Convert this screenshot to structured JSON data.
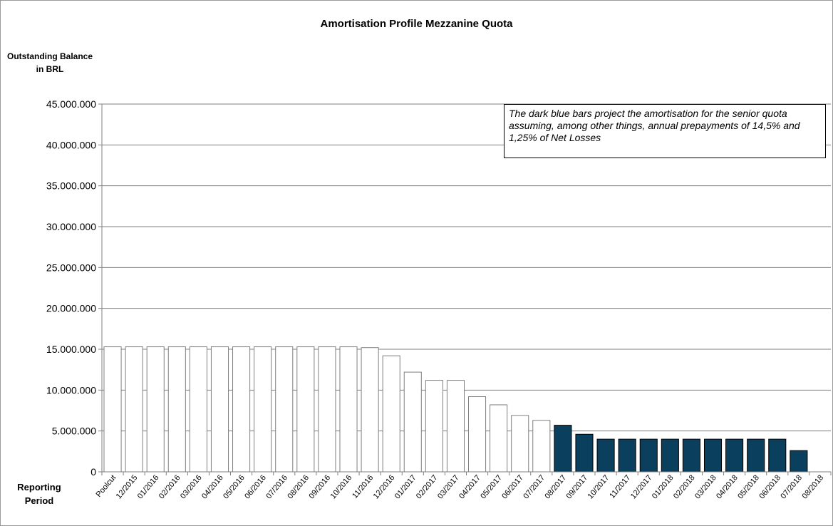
{
  "chart_data": {
    "type": "bar",
    "title": "Amortisation Profile Mezzanine Quota",
    "ylabel": "Outstanding Balance in BRL",
    "xlabel": "Reporting Period",
    "ylim": [
      0,
      45000000
    ],
    "yticks": [
      0,
      5000000,
      10000000,
      15000000,
      20000000,
      25000000,
      30000000,
      35000000,
      40000000,
      45000000
    ],
    "ytick_labels": [
      "0",
      "5.000.000",
      "10.000.000",
      "15.000.000",
      "20.000.000",
      "25.000.000",
      "30.000.000",
      "35.000.000",
      "40.000.000",
      "45.000.000"
    ],
    "grid": true,
    "categories": [
      "Poolcut",
      "12/2015",
      "01/2016",
      "02/2016",
      "03/2016",
      "04/2016",
      "05/2016",
      "06/2016",
      "07/2016",
      "08/2016",
      "09/2016",
      "10/2016",
      "11/2016",
      "12/2016",
      "01/2017",
      "02/2017",
      "03/2017",
      "04/2017",
      "05/2017",
      "06/2017",
      "07/2017",
      "08/2017",
      "09/2017",
      "10/2017",
      "11/2017",
      "12/2017",
      "01/2018",
      "02/2018",
      "03/2018",
      "04/2018",
      "05/2018",
      "06/2018",
      "07/2018",
      "08/2018"
    ],
    "values": [
      15300000,
      15300000,
      15300000,
      15300000,
      15300000,
      15300000,
      15300000,
      15300000,
      15300000,
      15300000,
      15300000,
      15300000,
      15200000,
      14200000,
      12200000,
      11200000,
      11200000,
      9200000,
      8200000,
      6900000,
      6300000,
      5700000,
      4600000,
      4000000,
      4000000,
      4000000,
      4000000,
      4000000,
      4000000,
      4000000,
      4000000,
      4000000,
      2600000,
      null
    ],
    "bar_styles": [
      "actual",
      "actual",
      "actual",
      "actual",
      "actual",
      "actual",
      "actual",
      "actual",
      "actual",
      "actual",
      "actual",
      "actual",
      "actual",
      "actual",
      "actual",
      "actual",
      "actual",
      "actual",
      "actual",
      "actual",
      "actual",
      "projected",
      "projected",
      "projected",
      "projected",
      "projected",
      "projected",
      "projected",
      "projected",
      "projected",
      "projected",
      "projected",
      "projected",
      "projected"
    ],
    "colors": {
      "actual_fill": "#ffffff",
      "actual_stroke": "#7f7f7f",
      "projected_fill": "#0b3f5e",
      "projected_stroke": "#000000",
      "grid": "#808080"
    },
    "annotation": "The dark blue bars project the amortisation for the senior quota assuming, among other things, annual prepayments of 14,5% and 1,25% of Net Losses"
  }
}
